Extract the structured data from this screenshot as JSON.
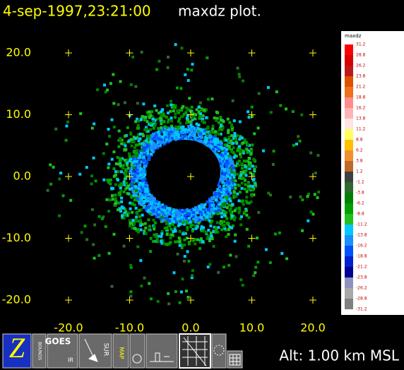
{
  "chart_data": {
    "type": "radar-image",
    "title": "4-sep-1997,23:21:00",
    "subtitle": "maxdz plot.",
    "xlim": [
      -20,
      20
    ],
    "ylim": [
      -20,
      20
    ],
    "xticks": [
      {
        "value": -20,
        "label": "-20.0"
      },
      {
        "value": -10,
        "label": "-10.0"
      },
      {
        "value": 0,
        "label": "0.0"
      },
      {
        "value": 10,
        "label": "10.0"
      },
      {
        "value": 20,
        "label": "20.0"
      }
    ],
    "yticks": [
      {
        "value": 20,
        "label": "20.0"
      },
      {
        "value": 10,
        "label": "10.0"
      },
      {
        "value": 0,
        "label": "0.0"
      },
      {
        "value": -10,
        "label": "-10.0"
      },
      {
        "value": -20,
        "label": "-20.0"
      }
    ],
    "tick_color": "#ffff00",
    "colorscale": {
      "title": "maxdz",
      "labels": [
        31.2,
        28.8,
        26.2,
        23.8,
        21.2,
        18.8,
        16.2,
        13.8,
        11.2,
        8.8,
        6.2,
        3.8,
        1.2,
        -1.2,
        -3.8,
        -6.2,
        -8.8,
        -11.2,
        -13.8,
        -16.2,
        -18.8,
        -21.2,
        -23.8,
        -26.2,
        -28.8,
        -31.2
      ],
      "colors": [
        "#ff0000",
        "#d80000",
        "#c01818",
        "#e05000",
        "#f07020",
        "#ff8c8c",
        "#ffb4b4",
        "#ffe4e4",
        "#ffff60",
        "#ffc000",
        "#f09030",
        "#c06828",
        "#404040",
        "#306830",
        "#008000",
        "#00a000",
        "#20c020",
        "#00c8ff",
        "#1890ff",
        "#0050ff",
        "#0020d0",
        "#000090",
        "#9090c0",
        "#a8a8a8",
        "#808080"
      ]
    },
    "altitude": "Alt: 1.00 km MSL",
    "toolbar": [
      "Z",
      "BOUNDS",
      "GOES",
      "IR",
      "SUR",
      "MAP"
    ]
  }
}
